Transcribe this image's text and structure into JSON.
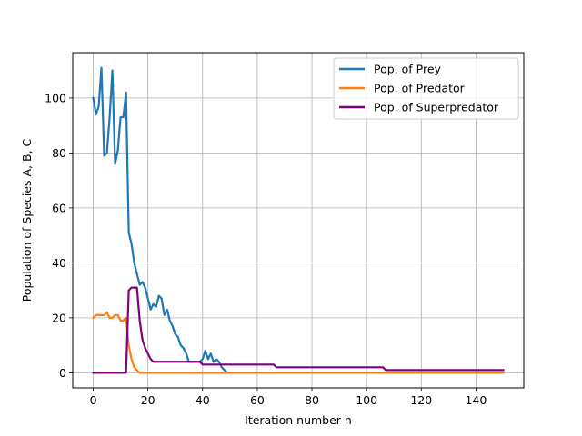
{
  "chart_data": {
    "type": "line",
    "title": "",
    "xlabel": "Iteration number n",
    "ylabel": "Population of Species A, B, C",
    "xlim": [
      -7.5,
      157.5
    ],
    "ylim": [
      -5.5,
      116.5
    ],
    "xticks": [
      0,
      20,
      40,
      60,
      80,
      100,
      120,
      140
    ],
    "yticks": [
      0,
      20,
      40,
      60,
      80,
      100
    ],
    "grid": true,
    "legend_position": "top-right",
    "series": [
      {
        "name": "Pop. of Prey",
        "color": "#1f77b4",
        "points": [
          [
            0,
            100
          ],
          [
            1,
            94
          ],
          [
            2,
            97
          ],
          [
            3,
            111
          ],
          [
            4,
            79
          ],
          [
            5,
            80
          ],
          [
            6,
            93
          ],
          [
            7,
            110
          ],
          [
            8,
            76
          ],
          [
            9,
            81
          ],
          [
            10,
            93
          ],
          [
            11,
            93
          ],
          [
            12,
            102
          ],
          [
            13,
            51
          ],
          [
            14,
            47
          ],
          [
            15,
            40
          ],
          [
            16,
            36
          ],
          [
            17,
            32
          ],
          [
            18,
            33
          ],
          [
            19,
            31
          ],
          [
            20,
            27
          ],
          [
            21,
            23
          ],
          [
            22,
            25
          ],
          [
            23,
            24
          ],
          [
            24,
            28
          ],
          [
            25,
            27
          ],
          [
            26,
            21
          ],
          [
            27,
            23
          ],
          [
            28,
            19
          ],
          [
            29,
            17
          ],
          [
            30,
            14
          ],
          [
            31,
            13
          ],
          [
            32,
            10
          ],
          [
            33,
            9
          ],
          [
            34,
            7
          ],
          [
            35,
            4
          ],
          [
            36,
            4
          ],
          [
            37,
            4
          ],
          [
            38,
            4
          ],
          [
            39,
            4
          ],
          [
            40,
            5
          ],
          [
            41,
            8
          ],
          [
            42,
            5
          ],
          [
            43,
            7
          ],
          [
            44,
            4
          ],
          [
            45,
            5
          ],
          [
            46,
            4
          ],
          [
            47,
            2
          ],
          [
            48,
            1
          ],
          [
            49,
            0
          ],
          [
            50,
            0
          ],
          [
            60,
            0
          ],
          [
            80,
            0
          ],
          [
            100,
            0
          ],
          [
            120,
            0
          ],
          [
            140,
            0
          ],
          [
            150,
            0
          ]
        ]
      },
      {
        "name": "Pop. of Predator",
        "color": "#ff7f0e",
        "points": [
          [
            0,
            20
          ],
          [
            1,
            21
          ],
          [
            2,
            21
          ],
          [
            3,
            21
          ],
          [
            4,
            21
          ],
          [
            5,
            22
          ],
          [
            6,
            20
          ],
          [
            7,
            20
          ],
          [
            8,
            21
          ],
          [
            9,
            21
          ],
          [
            10,
            19
          ],
          [
            11,
            19
          ],
          [
            12,
            20
          ],
          [
            13,
            10
          ],
          [
            14,
            5
          ],
          [
            15,
            2
          ],
          [
            16,
            1
          ],
          [
            17,
            0
          ],
          [
            20,
            0
          ],
          [
            40,
            0
          ],
          [
            60,
            0
          ],
          [
            80,
            0
          ],
          [
            100,
            0
          ],
          [
            120,
            0
          ],
          [
            140,
            0
          ],
          [
            150,
            0
          ]
        ]
      },
      {
        "name": "Pop. of Superpredator",
        "color": "#800080",
        "points": [
          [
            0,
            0
          ],
          [
            5,
            0
          ],
          [
            10,
            0
          ],
          [
            12,
            0
          ],
          [
            13,
            30
          ],
          [
            14,
            31
          ],
          [
            15,
            31
          ],
          [
            16,
            31
          ],
          [
            17,
            19
          ],
          [
            18,
            12
          ],
          [
            19,
            9
          ],
          [
            20,
            7
          ],
          [
            21,
            5
          ],
          [
            22,
            4
          ],
          [
            25,
            4
          ],
          [
            30,
            4
          ],
          [
            35,
            4
          ],
          [
            39,
            4
          ],
          [
            40,
            3
          ],
          [
            45,
            3
          ],
          [
            50,
            3
          ],
          [
            55,
            3
          ],
          [
            60,
            3
          ],
          [
            65,
            3
          ],
          [
            66,
            3
          ],
          [
            67,
            2
          ],
          [
            75,
            2
          ],
          [
            85,
            2
          ],
          [
            95,
            2
          ],
          [
            106,
            2
          ],
          [
            107,
            1
          ],
          [
            120,
            1
          ],
          [
            135,
            1
          ],
          [
            150,
            1
          ]
        ]
      }
    ]
  }
}
